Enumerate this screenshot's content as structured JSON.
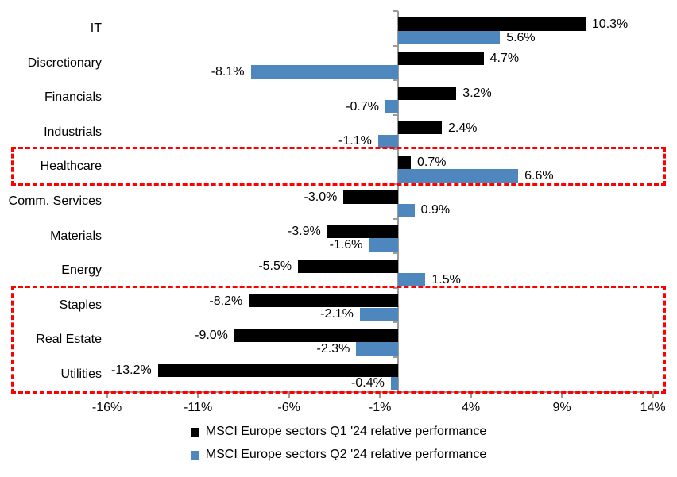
{
  "chart_data": {
    "type": "bar",
    "orientation": "horizontal",
    "title": "",
    "categories": [
      "IT",
      "Discretionary",
      "Financials",
      "Industrials",
      "Healthcare",
      "Comm. Services",
      "Materials",
      "Energy",
      "Staples",
      "Real Estate",
      "Utilities"
    ],
    "series": [
      {
        "name": "MSCI Europe sectors Q1 '24 relative performance",
        "color": "#000000",
        "values": [
          10.3,
          4.7,
          3.2,
          2.4,
          0.7,
          -3.0,
          -3.9,
          -5.5,
          -8.2,
          -9.0,
          -13.2
        ],
        "labels": [
          "10.3%",
          "4.7%",
          "3.2%",
          "2.4%",
          "0.7%",
          "-3.0%",
          "-3.9%",
          "-5.5%",
          "-8.2%",
          "-9.0%",
          "-13.2%"
        ]
      },
      {
        "name": "MSCI Europe sectors Q2 '24 relative performance",
        "color": "#4E86BE",
        "values": [
          5.6,
          -8.1,
          -0.7,
          -1.1,
          6.6,
          0.9,
          -1.6,
          1.5,
          -2.1,
          -2.3,
          -0.4
        ],
        "labels": [
          "5.6%",
          "-8.1%",
          "-0.7%",
          "-1.1%",
          "6.6%",
          "0.9%",
          "-1.6%",
          "1.5%",
          "-2.1%",
          "-2.3%",
          "-0.4%"
        ]
      }
    ],
    "x_axis": {
      "min": -16,
      "max": 14,
      "tick_step": 5,
      "ticks": [
        {
          "value": -16,
          "label": "-16%"
        },
        {
          "value": -11,
          "label": "-11%"
        },
        {
          "value": -6,
          "label": "-6%"
        },
        {
          "value": -1,
          "label": "-1%"
        },
        {
          "value": 4,
          "label": "4%"
        },
        {
          "value": 9,
          "label": "9%"
        },
        {
          "value": 14,
          "label": "14%"
        }
      ]
    },
    "grid": "off",
    "legend_position": "bottom",
    "highlight_color": "#FF0000",
    "highlights": [
      {
        "categories": [
          "Healthcare"
        ]
      },
      {
        "categories": [
          "Staples",
          "Real Estate",
          "Utilities"
        ]
      }
    ],
    "axis_color": "#9B9B9B"
  }
}
